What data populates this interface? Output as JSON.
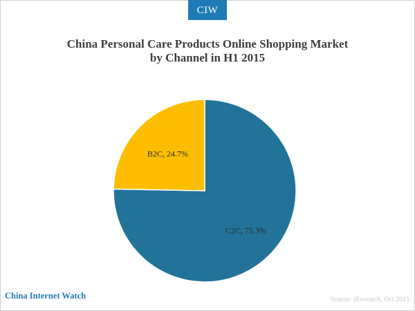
{
  "brand": {
    "badge": "CIW",
    "site_name": "China Internet Watch"
  },
  "header": {
    "title_line1": "China Personal Care Products Online Shopping Market",
    "title_line2": "by Channel in H1 2015"
  },
  "footer": {
    "source": "Source: iResearch, Oct 2015"
  },
  "colors": {
    "brand": "#1f7bb6",
    "c2c": "#21739a",
    "b2c": "#fdbd00"
  },
  "chart_data": {
    "type": "pie",
    "title": "China Personal Care Products Online Shopping Market by Channel in H1 2015",
    "slices": [
      {
        "label": "C2C",
        "value": 75.3,
        "data_label": "C2C, 75.3%",
        "color": "#21739a"
      },
      {
        "label": "B2C",
        "value": 24.7,
        "data_label": "B2C, 24.7%",
        "color": "#fdbd00"
      }
    ],
    "unit": "%",
    "legend": "none"
  }
}
